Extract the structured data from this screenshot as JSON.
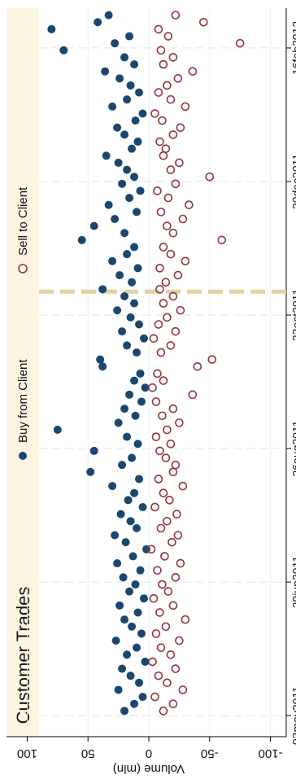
{
  "chart_data": {
    "type": "scatter",
    "title": "Customer Trades",
    "ylabel": "Volume (mln)",
    "x": [
      18752,
      18755,
      18758,
      18761,
      18764,
      18767,
      18770,
      18773,
      18776,
      18779,
      18782,
      18785,
      18788,
      18791,
      18794,
      18797,
      18800,
      18803,
      18806,
      18809,
      18812,
      18815,
      18818,
      18821,
      18824,
      18827,
      18830,
      18833,
      18836,
      18839,
      18842,
      18845,
      18848,
      18851,
      18854,
      18857,
      18860,
      18863,
      18866,
      18869,
      18872,
      18875,
      18878,
      18881,
      18884,
      18887,
      18890,
      18893,
      18896,
      18899,
      18902,
      18905,
      18908,
      18911,
      18914,
      18917,
      18920,
      18923,
      18926,
      18929,
      18932,
      18935,
      18938,
      18941,
      18944,
      18947,
      18950,
      18953,
      18956,
      18959,
      18962,
      18965,
      18968,
      18971,
      18974,
      18977,
      18980,
      18983,
      18986,
      18989,
      18992,
      18995,
      18998,
      19001,
      19004,
      19007,
      19010,
      19013,
      19016,
      19019,
      19022,
      19025,
      19028,
      19031,
      19034,
      19037,
      19040,
      19043,
      19046,
      19049
    ],
    "series": [
      {
        "name": "Buy from Client",
        "color": "#1a476f",
        "filled": true,
        "values": [
          20,
          12,
          5,
          25,
          8,
          15,
          22,
          3,
          18,
          10,
          27,
          6,
          14,
          20,
          9,
          24,
          4,
          16,
          11,
          21,
          7,
          26,
          13,
          2,
          19,
          28,
          10,
          15,
          23,
          5,
          17,
          12,
          30,
          8,
          48,
          22,
          14,
          45,
          9,
          18,
          75,
          25,
          11,
          20,
          6,
          16,
          3,
          12,
          7,
          38,
          40,
          10,
          18,
          4,
          22,
          8,
          15,
          26,
          12,
          20,
          38,
          14,
          24,
          9,
          30,
          18,
          12,
          55,
          20,
          45,
          28,
          10,
          33,
          16,
          7,
          22,
          12,
          18,
          25,
          35,
          14,
          9,
          20,
          26,
          11,
          5,
          30,
          18,
          8,
          15,
          24,
          36,
          12,
          20,
          70,
          28,
          16,
          80,
          42,
          33
        ]
      },
      {
        "name": "Sell to Client",
        "color": "#90353b",
        "filled": false,
        "values": [
          -12,
          -20,
          -5,
          -28,
          -15,
          -8,
          -22,
          -3,
          -18,
          -10,
          -25,
          -6,
          -14,
          -30,
          -9,
          -20,
          -4,
          -16,
          -11,
          -22,
          -7,
          -26,
          -13,
          -2,
          -19,
          -24,
          -10,
          -15,
          -23,
          -5,
          -17,
          -12,
          -28,
          -8,
          -20,
          -22,
          -14,
          -9,
          -18,
          -6,
          -15,
          -25,
          -11,
          -20,
          -6,
          -36,
          -3,
          -12,
          -7,
          -40,
          -52,
          -10,
          -18,
          -4,
          -22,
          -8,
          -15,
          -26,
          -12,
          -20,
          -9,
          -14,
          -24,
          -9,
          -30,
          -18,
          -12,
          -60,
          -20,
          -15,
          -28,
          -10,
          -33,
          -16,
          -7,
          -22,
          -50,
          -18,
          -25,
          -12,
          -14,
          -9,
          -20,
          -26,
          -11,
          -5,
          -30,
          -18,
          -8,
          -15,
          -24,
          -36,
          -12,
          -20,
          -10,
          -75,
          -16,
          -8,
          -45,
          -22
        ]
      }
    ],
    "xlim": [
      18741,
      19052
    ],
    "xticks": [
      {
        "value": 18750,
        "label": "03may2011"
      },
      {
        "value": 18807,
        "label": "29jun2011"
      },
      {
        "value": 18864,
        "label": "26aug2011"
      },
      {
        "value": 18921,
        "label": "23oct2011"
      },
      {
        "value": 18978,
        "label": "20dec2011"
      },
      {
        "value": 19035,
        "label": "16feb2012"
      }
    ],
    "ylim": [
      -113,
      117
    ],
    "yticks": [
      -100,
      -50,
      0,
      50,
      100
    ],
    "xline": 18931,
    "xline_color": "#e0d3a0",
    "grid": true
  }
}
